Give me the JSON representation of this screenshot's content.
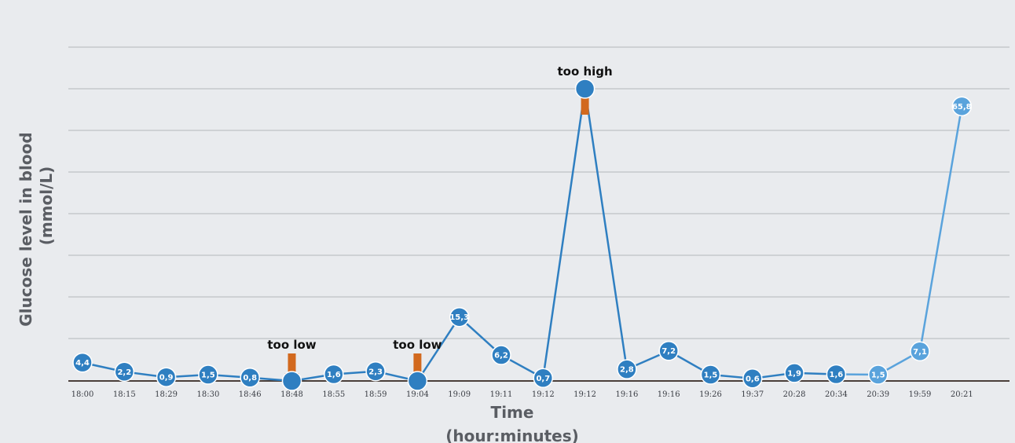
{
  "chart_data": {
    "type": "line",
    "xlabel": "Time",
    "xlabel_sub": "(hour:minutes)",
    "ylabel": "Glucose level in blood",
    "ylabel_sub": "(mmol/L)",
    "ylim": [
      0,
      70
    ],
    "grid": true,
    "categories": [
      "18:00",
      "18:15",
      "18:29",
      "18:30",
      "18:46",
      "18:48",
      "18:55",
      "18:59",
      "19:04",
      "19:09",
      "19:11",
      "19:12",
      "19:12",
      "19:16",
      "19:16",
      "19:26",
      "19:37",
      "20:28",
      "20:34",
      "20:39",
      "19:59",
      "20:21"
    ],
    "values": [
      4.4,
      2.2,
      0.9,
      1.5,
      0.8,
      0.0,
      1.6,
      2.3,
      0.0,
      15.3,
      6.2,
      0.7,
      70.0,
      2.8,
      7.2,
      1.5,
      0.6,
      1.9,
      1.6,
      1.5,
      7.1,
      65.8
    ],
    "value_labels": [
      "4,4",
      "2,2",
      "0,9",
      "1,5",
      "0,8",
      "",
      "1,6",
      "2,3",
      "",
      "15,3",
      "6,2",
      "0,7",
      "",
      "2,8",
      "7,2",
      "1,5",
      "0,6",
      "1,9",
      "1,6",
      "1,5",
      "7,1",
      "65,8"
    ],
    "annotations": [
      {
        "text": "too low",
        "index": 5,
        "direction": "down"
      },
      {
        "text": "too low",
        "index": 8,
        "direction": "down"
      },
      {
        "text": "too high",
        "index": 12,
        "direction": "up"
      }
    ],
    "colors": {
      "line": "#2f7fc1",
      "line_light": "#5aa3dc",
      "marker": "#2f7fc1",
      "arrow": "#d2691e",
      "grid": "#8a8d93",
      "axis": "#4a3f3a"
    }
  }
}
